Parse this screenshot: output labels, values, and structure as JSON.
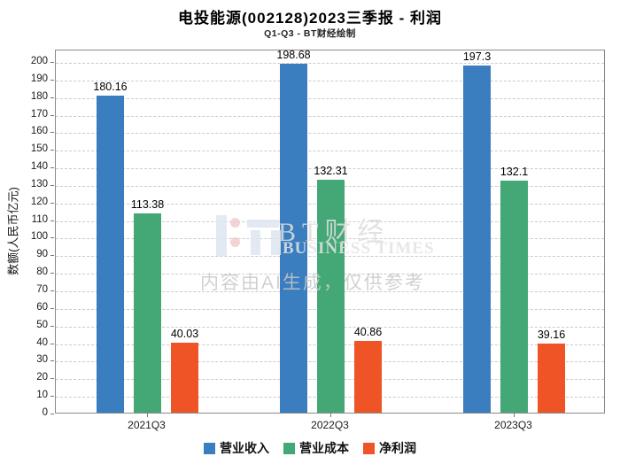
{
  "watermark": {
    "brand_cn": "BT财经",
    "brand_en": "BUSINESS TIMES",
    "disclaimer": "内容由AI生成，仅供参考"
  },
  "chart_data": {
    "type": "bar",
    "title": "电投能源(002128)2023三季报 - 利润",
    "subtitle": "Q1-Q3 - BT财经绘制",
    "categories": [
      "2021Q3",
      "2022Q3",
      "2023Q3"
    ],
    "series": [
      {
        "name": "营业收入",
        "color": "#3a7ebf",
        "values": [
          180.16,
          198.68,
          197.3
        ]
      },
      {
        "name": "营业成本",
        "color": "#43a876",
        "values": [
          113.38,
          132.31,
          132.1
        ]
      },
      {
        "name": "净利润",
        "color": "#ee5426",
        "values": [
          40.03,
          40.86,
          39.16
        ]
      }
    ],
    "xlabel": "",
    "ylabel": "数额(人民币亿元)",
    "ylim": [
      0,
      207
    ],
    "yticks": [
      0,
      10,
      20,
      30,
      40,
      50,
      60,
      70,
      80,
      90,
      100,
      110,
      120,
      130,
      140,
      150,
      160,
      170,
      180,
      190,
      200
    ],
    "grid": "horizontal-dashed",
    "bar_value_labels": true,
    "legend_position": "bottom"
  }
}
